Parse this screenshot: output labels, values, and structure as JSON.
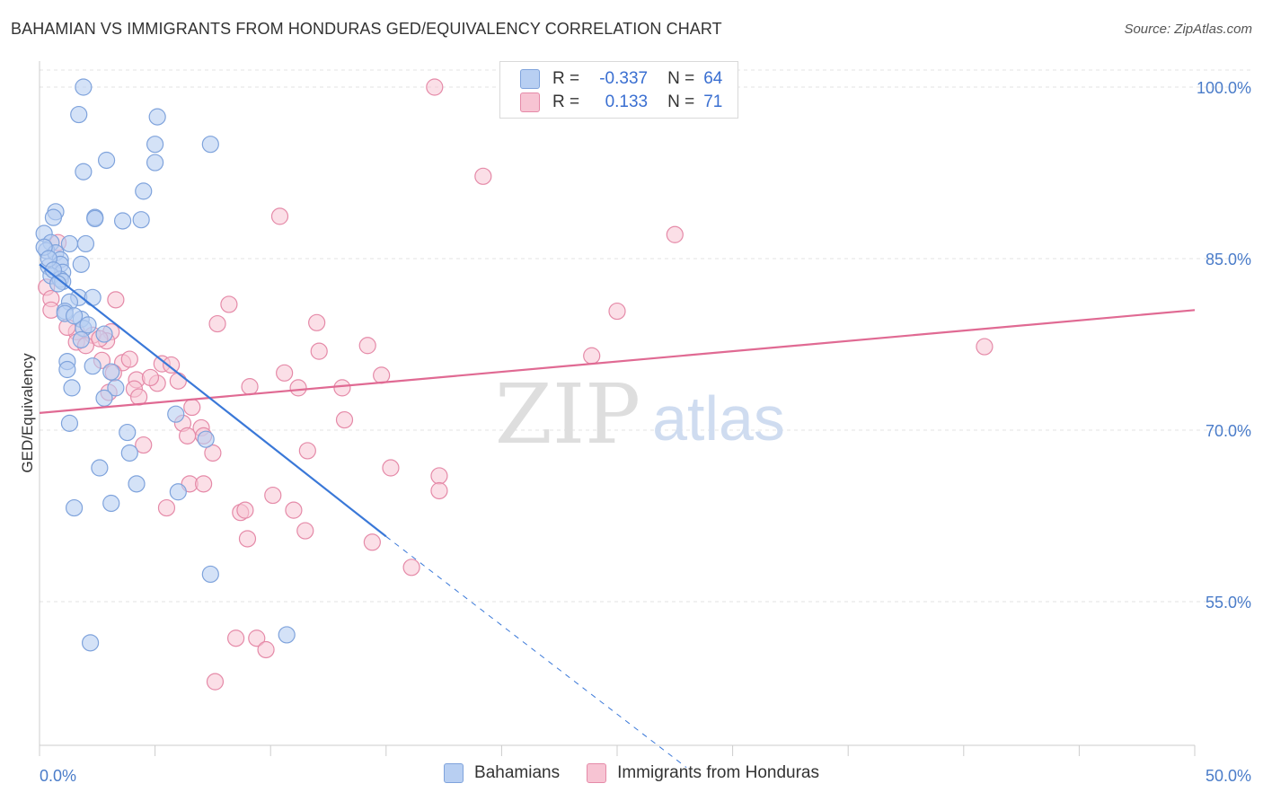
{
  "title": "BAHAMIAN VS IMMIGRANTS FROM HONDURAS GED/EQUIVALENCY CORRELATION CHART",
  "source": "Source: ZipAtlas.com",
  "watermark": {
    "zip": "ZIP",
    "atlas": "atlas"
  },
  "legend": {
    "rows": [
      {
        "r_label": "R =",
        "r_value": "-0.337",
        "n_label": "N =",
        "n_value": "64"
      },
      {
        "r_label": "R =",
        "r_value": "0.133",
        "n_label": "N =",
        "n_value": "71"
      }
    ]
  },
  "colors": {
    "blue_fill": "#b8cff2",
    "blue_stroke": "#7fa3dc",
    "blue_line": "#3a78d8",
    "pink_fill": "#f7c4d3",
    "pink_stroke": "#e58aa8",
    "pink_line": "#e06a93",
    "tick_label": "#4a7cc9",
    "grid": "#e3e3e3"
  },
  "chart_data": {
    "type": "scatter",
    "title": "BAHAMIAN VS IMMIGRANTS FROM HONDURAS GED/EQUIVALENCY CORRELATION CHART",
    "xlabel": "",
    "ylabel": "GED/Equivalency",
    "xlim": [
      0,
      50
    ],
    "ylim": [
      40.5,
      102
    ],
    "x_tick_labels": [
      "0.0%",
      "50.0%"
    ],
    "y_ticks": [
      55,
      70,
      85,
      100
    ],
    "y_tick_labels": [
      "55.0%",
      "70.0%",
      "85.0%",
      "100.0%"
    ],
    "grid": true,
    "legend_position": "top-center and bottom",
    "series": [
      {
        "name": "Bahamians",
        "points": [
          [
            1.9,
            100.0
          ],
          [
            1.7,
            97.6
          ],
          [
            5.1,
            97.4
          ],
          [
            5.0,
            95.0
          ],
          [
            7.4,
            95.0
          ],
          [
            1.9,
            92.6
          ],
          [
            2.9,
            93.6
          ],
          [
            5.0,
            93.4
          ],
          [
            4.5,
            90.9
          ],
          [
            0.7,
            89.1
          ],
          [
            0.6,
            88.6
          ],
          [
            2.4,
            88.6
          ],
          [
            2.4,
            88.5
          ],
          [
            3.6,
            88.3
          ],
          [
            4.4,
            88.4
          ],
          [
            0.2,
            87.2
          ],
          [
            0.5,
            86.4
          ],
          [
            1.3,
            86.3
          ],
          [
            2.0,
            86.3
          ],
          [
            0.3,
            85.7
          ],
          [
            0.7,
            85.5
          ],
          [
            0.9,
            84.9
          ],
          [
            1.8,
            84.5
          ],
          [
            0.4,
            84.3
          ],
          [
            0.9,
            84.5
          ],
          [
            1.0,
            83.8
          ],
          [
            0.5,
            83.5
          ],
          [
            0.9,
            83.2
          ],
          [
            1.7,
            81.6
          ],
          [
            2.3,
            81.6
          ],
          [
            1.3,
            81.2
          ],
          [
            1.1,
            80.4
          ],
          [
            1.8,
            79.7
          ],
          [
            1.1,
            80.2
          ],
          [
            1.9,
            78.9
          ],
          [
            2.8,
            78.4
          ],
          [
            1.8,
            77.9
          ],
          [
            1.2,
            76.0
          ],
          [
            2.3,
            75.6
          ],
          [
            1.2,
            75.3
          ],
          [
            3.1,
            75.1
          ],
          [
            1.4,
            73.7
          ],
          [
            3.3,
            73.7
          ],
          [
            2.8,
            72.8
          ],
          [
            5.9,
            71.4
          ],
          [
            1.3,
            70.6
          ],
          [
            3.8,
            69.8
          ],
          [
            7.2,
            69.2
          ],
          [
            3.9,
            68.0
          ],
          [
            2.6,
            66.7
          ],
          [
            4.2,
            65.3
          ],
          [
            6.0,
            64.6
          ],
          [
            3.1,
            63.6
          ],
          [
            1.5,
            63.2
          ],
          [
            7.4,
            57.4
          ],
          [
            10.7,
            52.1
          ],
          [
            2.2,
            51.4
          ],
          [
            0.2,
            86.0
          ],
          [
            0.4,
            85.0
          ],
          [
            0.6,
            84.0
          ],
          [
            1.0,
            83.0
          ],
          [
            0.8,
            82.8
          ],
          [
            1.5,
            80.0
          ],
          [
            2.1,
            79.2
          ]
        ]
      },
      {
        "name": "Immigrants from Honduras",
        "points": [
          [
            17.1,
            100.0
          ],
          [
            28.7,
            100.0
          ],
          [
            19.2,
            92.2
          ],
          [
            10.4,
            88.7
          ],
          [
            27.5,
            87.1
          ],
          [
            0.8,
            86.4
          ],
          [
            0.3,
            82.5
          ],
          [
            0.5,
            81.5
          ],
          [
            3.3,
            81.4
          ],
          [
            8.2,
            81.0
          ],
          [
            25.0,
            80.4
          ],
          [
            7.7,
            79.3
          ],
          [
            12.0,
            79.4
          ],
          [
            1.6,
            78.6
          ],
          [
            2.3,
            78.3
          ],
          [
            3.1,
            78.6
          ],
          [
            1.6,
            77.7
          ],
          [
            2.0,
            77.4
          ],
          [
            2.9,
            77.8
          ],
          [
            14.2,
            77.4
          ],
          [
            12.1,
            76.9
          ],
          [
            23.9,
            76.5
          ],
          [
            40.9,
            77.3
          ],
          [
            2.7,
            76.1
          ],
          [
            3.6,
            75.9
          ],
          [
            5.3,
            75.8
          ],
          [
            5.7,
            75.7
          ],
          [
            3.2,
            75.0
          ],
          [
            10.6,
            75.0
          ],
          [
            14.8,
            74.8
          ],
          [
            4.2,
            74.4
          ],
          [
            5.1,
            74.1
          ],
          [
            6.0,
            74.3
          ],
          [
            4.1,
            73.6
          ],
          [
            9.1,
            73.8
          ],
          [
            11.2,
            73.7
          ],
          [
            13.1,
            73.7
          ],
          [
            4.3,
            72.9
          ],
          [
            3.0,
            73.3
          ],
          [
            6.2,
            70.6
          ],
          [
            7.0,
            70.2
          ],
          [
            13.2,
            70.9
          ],
          [
            4.5,
            68.7
          ],
          [
            6.4,
            69.5
          ],
          [
            7.1,
            69.5
          ],
          [
            11.6,
            68.2
          ],
          [
            7.5,
            68.0
          ],
          [
            15.2,
            66.7
          ],
          [
            17.3,
            66.0
          ],
          [
            17.3,
            64.7
          ],
          [
            6.5,
            65.3
          ],
          [
            7.1,
            65.3
          ],
          [
            10.1,
            64.3
          ],
          [
            5.5,
            63.2
          ],
          [
            8.7,
            62.8
          ],
          [
            8.9,
            63.0
          ],
          [
            11.0,
            63.0
          ],
          [
            11.5,
            61.2
          ],
          [
            9.0,
            60.5
          ],
          [
            14.4,
            60.2
          ],
          [
            16.1,
            58.0
          ],
          [
            8.5,
            51.8
          ],
          [
            9.4,
            51.8
          ],
          [
            9.8,
            50.8
          ],
          [
            7.6,
            48.0
          ],
          [
            0.5,
            80.5
          ],
          [
            1.2,
            79.0
          ],
          [
            2.6,
            78.0
          ],
          [
            4.8,
            74.6
          ],
          [
            3.9,
            76.2
          ],
          [
            6.6,
            72.0
          ]
        ]
      }
    ],
    "trendlines": [
      {
        "series": "Bahamians",
        "x": [
          0,
          15
        ],
        "y": [
          84.5,
          60.7
        ],
        "dashed_x": [
          15,
          28
        ],
        "dashed_y": [
          60.7,
          40.5
        ]
      },
      {
        "series": "Immigrants from Honduras",
        "x": [
          0,
          50
        ],
        "y": [
          71.5,
          80.5
        ]
      }
    ]
  }
}
